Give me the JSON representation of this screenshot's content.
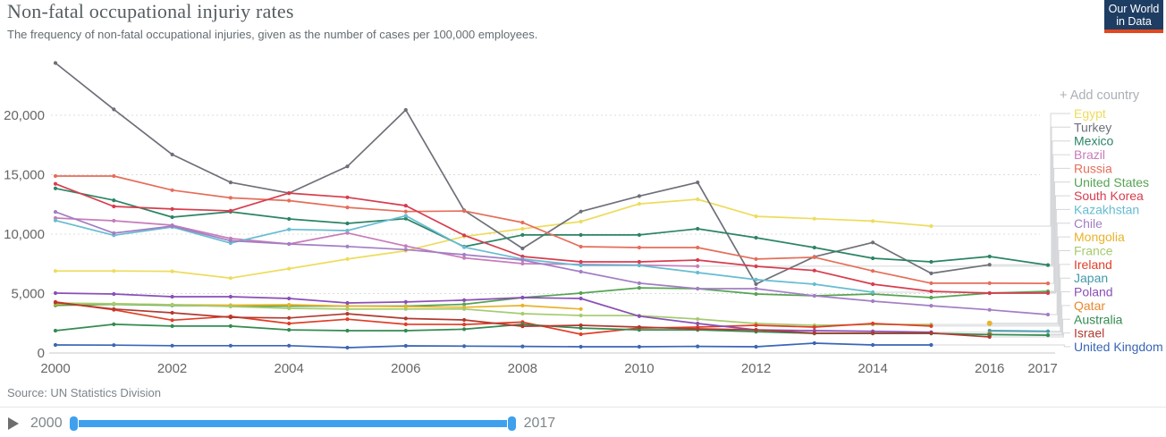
{
  "header": {
    "title": "Non-fatal occupational injuriy rates",
    "subtitle": "The frequency of non-fatal occupational injuries, given as the number of cases per 100,000 employees.",
    "logo_line1": "Our World",
    "logo_line2": "in Data",
    "logo_bg": "#1d3d63",
    "logo_accent": "#e0491f"
  },
  "add_country_label": "+ Add country",
  "source": {
    "label": "Source: UN Statistics Division"
  },
  "timeline": {
    "start_label": "2000",
    "end_label": "2017",
    "slider_color": "#3fa0ee"
  },
  "chart_data": {
    "type": "line",
    "title": "Non-fatal occupational injuriy rates",
    "unit": "cases per 100,000 employees",
    "xlim": [
      2000,
      2017
    ],
    "ylim": [
      0,
      25000
    ],
    "grid": "dashed-horizontal",
    "legend_position": "right",
    "x_ticks": [
      {
        "value": 2000,
        "label": "2000"
      },
      {
        "value": 2002,
        "label": "2002"
      },
      {
        "value": 2004,
        "label": "2004"
      },
      {
        "value": 2006,
        "label": "2006"
      },
      {
        "value": 2008,
        "label": "2008"
      },
      {
        "value": 2010,
        "label": "2010"
      },
      {
        "value": 2012,
        "label": "2012"
      },
      {
        "value": 2014,
        "label": "2014"
      },
      {
        "value": 2016,
        "label": "2016"
      },
      {
        "value": 2017,
        "label": "2017"
      }
    ],
    "y_ticks": [
      {
        "value": 0,
        "label": "0"
      },
      {
        "value": 5000,
        "label": "5,000"
      },
      {
        "value": 10000,
        "label": "10,000"
      },
      {
        "value": 15000,
        "label": "15,000"
      },
      {
        "value": 20000,
        "label": "20,000"
      }
    ],
    "series": [
      {
        "name": "Egypt",
        "color": "#EDDC5E",
        "points": [
          [
            2000,
            6900
          ],
          [
            2001,
            6900
          ],
          [
            2002,
            6870
          ],
          [
            2003,
            6300
          ],
          [
            2004,
            7100
          ],
          [
            2005,
            7900
          ],
          [
            2006,
            8600
          ],
          [
            2007,
            9800
          ],
          [
            2008,
            10450
          ],
          [
            2009,
            11050
          ],
          [
            2010,
            12550
          ],
          [
            2011,
            12930
          ],
          [
            2012,
            11500
          ],
          [
            2013,
            11300
          ],
          [
            2014,
            11100
          ],
          [
            2015,
            10680
          ]
        ]
      },
      {
        "name": "Turkey",
        "color": "#6E7079",
        "points": [
          [
            2000,
            24400
          ],
          [
            2001,
            20500
          ],
          [
            2002,
            16700
          ],
          [
            2003,
            14350
          ],
          [
            2004,
            13450
          ],
          [
            2005,
            15700
          ],
          [
            2006,
            20450
          ],
          [
            2007,
            12000
          ],
          [
            2008,
            8800
          ],
          [
            2009,
            11900
          ],
          [
            2010,
            13200
          ],
          [
            2011,
            14350
          ],
          [
            2012,
            5800
          ],
          [
            2013,
            8100
          ],
          [
            2014,
            9300
          ],
          [
            2015,
            6700
          ],
          [
            2016,
            7430
          ]
        ]
      },
      {
        "name": "Mexico",
        "color": "#2C8465",
        "points": [
          [
            2000,
            13850
          ],
          [
            2001,
            12850
          ],
          [
            2002,
            11430
          ],
          [
            2003,
            11880
          ],
          [
            2004,
            11280
          ],
          [
            2005,
            10900
          ],
          [
            2006,
            11300
          ],
          [
            2007,
            8950
          ],
          [
            2008,
            9930
          ],
          [
            2009,
            9930
          ],
          [
            2010,
            9930
          ],
          [
            2011,
            10450
          ],
          [
            2012,
            9700
          ],
          [
            2013,
            8870
          ],
          [
            2014,
            7970
          ],
          [
            2015,
            7670
          ],
          [
            2016,
            8120
          ],
          [
            2017,
            7400
          ]
        ]
      },
      {
        "name": "Brazil",
        "color": "#C77CBA",
        "points": [
          [
            2000,
            11350
          ],
          [
            2001,
            11130
          ],
          [
            2002,
            10750
          ],
          [
            2003,
            9630
          ],
          [
            2004,
            9170
          ],
          [
            2005,
            10100
          ],
          [
            2006,
            9000
          ],
          [
            2007,
            8000
          ],
          [
            2008,
            7520
          ],
          [
            2009,
            7450
          ],
          [
            2010,
            7400
          ],
          [
            2011,
            7300
          ]
        ]
      },
      {
        "name": "Russia",
        "color": "#E56E5A",
        "points": [
          [
            2000,
            14890
          ],
          [
            2001,
            14890
          ],
          [
            2002,
            13700
          ],
          [
            2003,
            13050
          ],
          [
            2004,
            12820
          ],
          [
            2005,
            12250
          ],
          [
            2006,
            11900
          ],
          [
            2007,
            11950
          ],
          [
            2008,
            10980
          ],
          [
            2009,
            8950
          ],
          [
            2010,
            8870
          ],
          [
            2011,
            8870
          ],
          [
            2012,
            7900
          ],
          [
            2013,
            8050
          ],
          [
            2014,
            6900
          ],
          [
            2015,
            5870
          ],
          [
            2016,
            5870
          ],
          [
            2017,
            5860
          ]
        ]
      },
      {
        "name": "United States",
        "color": "#56A353",
        "points": [
          [
            2000,
            4000
          ],
          [
            2001,
            4100
          ],
          [
            2002,
            4000
          ],
          [
            2003,
            3950
          ],
          [
            2004,
            3950
          ],
          [
            2005,
            3950
          ],
          [
            2006,
            3950
          ],
          [
            2007,
            4100
          ],
          [
            2008,
            4660
          ],
          [
            2009,
            5040
          ],
          [
            2010,
            5480
          ],
          [
            2011,
            5410
          ],
          [
            2012,
            4960
          ],
          [
            2013,
            4810
          ],
          [
            2014,
            4960
          ],
          [
            2015,
            4660
          ],
          [
            2016,
            5040
          ],
          [
            2017,
            5190
          ]
        ]
      },
      {
        "name": "South Korea",
        "color": "#D73C4E",
        "points": [
          [
            2000,
            14230
          ],
          [
            2001,
            12330
          ],
          [
            2002,
            12110
          ],
          [
            2003,
            11960
          ],
          [
            2004,
            13450
          ],
          [
            2005,
            13100
          ],
          [
            2006,
            12400
          ],
          [
            2007,
            9900
          ],
          [
            2008,
            8120
          ],
          [
            2009,
            7670
          ],
          [
            2010,
            7670
          ],
          [
            2011,
            7820
          ],
          [
            2012,
            7290
          ],
          [
            2013,
            6940
          ],
          [
            2014,
            5790
          ],
          [
            2015,
            5190
          ],
          [
            2016,
            5040
          ],
          [
            2017,
            5040
          ]
        ]
      },
      {
        "name": "Kazakhstan",
        "color": "#66BCD1",
        "points": [
          [
            2000,
            11150
          ],
          [
            2001,
            9900
          ],
          [
            2002,
            10600
          ],
          [
            2003,
            9250
          ],
          [
            2004,
            10400
          ],
          [
            2005,
            10300
          ],
          [
            2006,
            11550
          ],
          [
            2007,
            8900
          ],
          [
            2008,
            7900
          ],
          [
            2009,
            7370
          ],
          [
            2010,
            7370
          ],
          [
            2011,
            6770
          ],
          [
            2012,
            6170
          ],
          [
            2013,
            5790
          ],
          [
            2014,
            5110
          ]
        ]
      },
      {
        "name": "Chile",
        "color": "#A27EC4",
        "points": [
          [
            2000,
            11870
          ],
          [
            2001,
            10080
          ],
          [
            2002,
            10680
          ],
          [
            2003,
            9440
          ],
          [
            2004,
            9170
          ],
          [
            2005,
            8960
          ],
          [
            2006,
            8700
          ],
          [
            2007,
            8270
          ],
          [
            2008,
            7820
          ],
          [
            2009,
            6840
          ],
          [
            2010,
            5870
          ],
          [
            2011,
            5410
          ],
          [
            2012,
            5410
          ],
          [
            2013,
            4810
          ],
          [
            2014,
            4360
          ],
          [
            2015,
            3980
          ],
          [
            2016,
            3630
          ],
          [
            2017,
            3230
          ]
        ]
      },
      {
        "name": "Mongolia",
        "color": "#E9B32A",
        "points": [
          [
            2000,
            4120
          ],
          [
            2001,
            4150
          ],
          [
            2002,
            4060
          ],
          [
            2003,
            4020
          ],
          [
            2004,
            4060
          ],
          [
            2005,
            3950
          ],
          [
            2006,
            3900
          ],
          [
            2007,
            3850
          ],
          [
            2008,
            3990
          ],
          [
            2009,
            3700
          ],
          [
            2016,
            2500
          ]
        ]
      },
      {
        "name": "France",
        "color": "#A5CB6F",
        "points": [
          [
            2000,
            4200
          ],
          [
            2001,
            4140
          ],
          [
            2002,
            4060
          ],
          [
            2003,
            3910
          ],
          [
            2004,
            3760
          ],
          [
            2005,
            3690
          ],
          [
            2006,
            3700
          ],
          [
            2007,
            3700
          ],
          [
            2008,
            3310
          ],
          [
            2009,
            3160
          ],
          [
            2010,
            3140
          ],
          [
            2011,
            2860
          ],
          [
            2012,
            2480
          ],
          [
            2013,
            2330
          ],
          [
            2014,
            2400
          ],
          [
            2015,
            2400
          ]
        ]
      },
      {
        "name": "Ireland",
        "color": "#E03E27",
        "points": [
          [
            2000,
            4290
          ],
          [
            2001,
            3630
          ],
          [
            2002,
            2760
          ],
          [
            2003,
            3080
          ],
          [
            2004,
            2480
          ],
          [
            2005,
            2840
          ],
          [
            2006,
            2410
          ],
          [
            2007,
            2400
          ],
          [
            2008,
            2600
          ],
          [
            2009,
            1580
          ],
          [
            2010,
            2100
          ],
          [
            2011,
            2180
          ],
          [
            2012,
            2330
          ],
          [
            2013,
            2180
          ],
          [
            2014,
            2480
          ],
          [
            2015,
            2260
          ]
        ]
      },
      {
        "name": "Japan",
        "color": "#4399A9",
        "points": [
          [
            2016,
            1880
          ],
          [
            2017,
            1830
          ]
        ]
      },
      {
        "name": "Poland",
        "color": "#8A4FB7",
        "points": [
          [
            2000,
            5040
          ],
          [
            2001,
            4960
          ],
          [
            2002,
            4740
          ],
          [
            2003,
            4740
          ],
          [
            2004,
            4590
          ],
          [
            2005,
            4210
          ],
          [
            2006,
            4290
          ],
          [
            2007,
            4440
          ],
          [
            2008,
            4660
          ],
          [
            2009,
            4590
          ],
          [
            2010,
            3100
          ],
          [
            2011,
            2480
          ],
          [
            2012,
            1950
          ],
          [
            2013,
            1880
          ],
          [
            2014,
            1830
          ],
          [
            2015,
            1750
          ]
        ]
      },
      {
        "name": "Qatar",
        "color": "#E8882F",
        "points": [
          [
            2016,
            1580
          ]
        ]
      },
      {
        "name": "Australia",
        "color": "#338B51",
        "points": [
          [
            2000,
            1880
          ],
          [
            2001,
            2410
          ],
          [
            2002,
            2260
          ],
          [
            2003,
            2260
          ],
          [
            2004,
            1950
          ],
          [
            2005,
            1880
          ],
          [
            2006,
            1880
          ],
          [
            2007,
            2000
          ],
          [
            2008,
            2410
          ],
          [
            2009,
            2100
          ],
          [
            2010,
            1950
          ],
          [
            2011,
            1950
          ],
          [
            2012,
            1800
          ],
          [
            2013,
            1650
          ],
          [
            2014,
            1650
          ],
          [
            2015,
            1650
          ],
          [
            2016,
            1550
          ],
          [
            2017,
            1500
          ]
        ]
      },
      {
        "name": "Israel",
        "color": "#B13A30",
        "points": [
          [
            2000,
            4250
          ],
          [
            2001,
            3700
          ],
          [
            2002,
            3380
          ],
          [
            2003,
            3000
          ],
          [
            2004,
            2950
          ],
          [
            2005,
            3300
          ],
          [
            2006,
            2900
          ],
          [
            2007,
            2780
          ],
          [
            2008,
            2250
          ],
          [
            2009,
            2330
          ],
          [
            2010,
            2180
          ],
          [
            2011,
            2030
          ],
          [
            2012,
            1950
          ],
          [
            2013,
            1680
          ],
          [
            2014,
            1680
          ],
          [
            2015,
            1680
          ],
          [
            2016,
            1350
          ]
        ]
      },
      {
        "name": "United Kingdom",
        "color": "#3A66B5",
        "points": [
          [
            2000,
            680
          ],
          [
            2001,
            660
          ],
          [
            2002,
            620
          ],
          [
            2003,
            620
          ],
          [
            2004,
            620
          ],
          [
            2005,
            450
          ],
          [
            2006,
            600
          ],
          [
            2007,
            580
          ],
          [
            2008,
            560
          ],
          [
            2009,
            530
          ],
          [
            2010,
            530
          ],
          [
            2011,
            560
          ],
          [
            2012,
            530
          ],
          [
            2013,
            830
          ],
          [
            2014,
            680
          ],
          [
            2015,
            680
          ]
        ]
      }
    ]
  }
}
